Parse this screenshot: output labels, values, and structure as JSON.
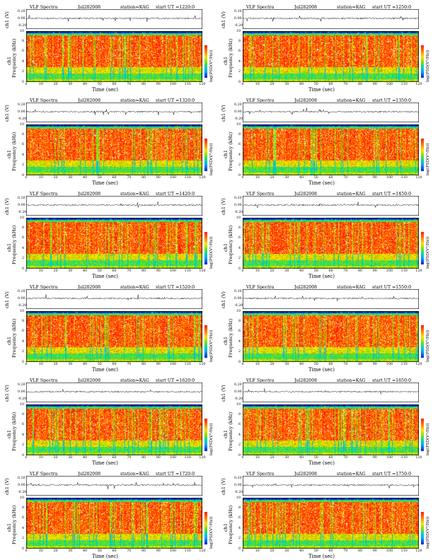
{
  "chart_data": {
    "type": "heatmap",
    "title": "VLF Spectra",
    "date": "Jul282008",
    "station": "station=KAG",
    "channel_label": "ch1",
    "waveform_ylabel": "ch1 (V)",
    "waveform_yticks": [
      "0.20",
      "0.00",
      "-0.20"
    ],
    "spectrogram_ylabel": "Frequency (kHz)",
    "spectrogram_yticks": [
      "10",
      "8",
      "6",
      "4",
      "2",
      "0"
    ],
    "ylim": [
      0,
      10
    ],
    "xlabel": "Time (sec)",
    "xlim": [
      0,
      120
    ],
    "xticks": [
      "0",
      "10",
      "20",
      "30",
      "40",
      "50",
      "60",
      "70",
      "80",
      "90",
      "100",
      "110",
      "120"
    ],
    "colorbar_label": "log(PSD(V²/Hz))",
    "colormap": [
      "#0022cc",
      "#00a8ff",
      "#00d8a8",
      "#7ee000",
      "#ffe000",
      "#ff7a00",
      "#ff1a00"
    ],
    "panels": [
      {
        "start": "start UT =1220:0"
      },
      {
        "start": "start UT =1250:0"
      },
      {
        "start": "start UT =1320:0"
      },
      {
        "start": "start UT =1350:0"
      },
      {
        "start": "start UT =1420:0"
      },
      {
        "start": "start UT =1450:0"
      },
      {
        "start": "start UT =1520:0"
      },
      {
        "start": "start UT =1550:0"
      },
      {
        "start": "start UT =1620:0"
      },
      {
        "start": "start UT =1650:0"
      },
      {
        "start": "start UT =1720:0"
      },
      {
        "start": "start UT =1750:0"
      }
    ]
  }
}
